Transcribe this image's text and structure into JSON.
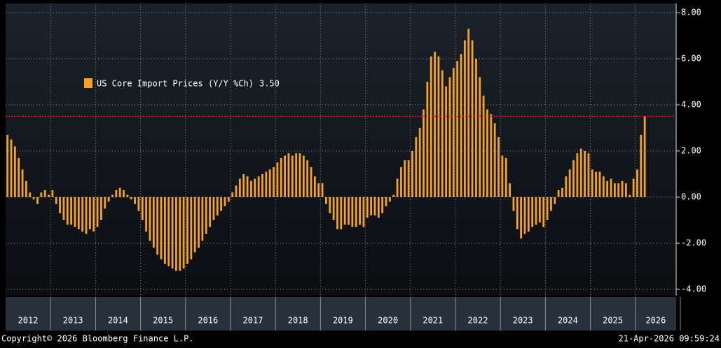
{
  "chart_data": {
    "type": "bar",
    "series": [
      {
        "name": "US Core Import Prices (Y/Y %Ch)",
        "color": "#f4a422",
        "values": [
          2.7,
          2.5,
          2.2,
          1.7,
          1.2,
          0.7,
          0.2,
          -0.1,
          -0.3,
          0.2,
          0.3,
          0.1,
          0.3,
          -0.3,
          -0.7,
          -1.0,
          -1.2,
          -1.2,
          -1.3,
          -1.4,
          -1.5,
          -1.6,
          -1.4,
          -1.5,
          -1.3,
          -1.0,
          -0.5,
          -0.2,
          0.1,
          0.3,
          0.4,
          0.3,
          0.1,
          -0.1,
          -0.3,
          -0.6,
          -1.0,
          -1.5,
          -1.9,
          -2.2,
          -2.5,
          -2.7,
          -2.9,
          -3.0,
          -3.1,
          -3.2,
          -3.2,
          -3.1,
          -2.9,
          -2.7,
          -2.4,
          -2.2,
          -1.9,
          -1.6,
          -1.3,
          -1.0,
          -0.8,
          -0.6,
          -0.4,
          -0.2,
          0.2,
          0.5,
          0.8,
          1.0,
          0.9,
          0.7,
          0.8,
          0.9,
          1.0,
          1.1,
          1.2,
          1.3,
          1.5,
          1.7,
          1.8,
          1.9,
          1.8,
          1.9,
          1.9,
          1.8,
          1.6,
          1.3,
          0.9,
          0.6,
          0.6,
          -0.3,
          -0.7,
          -1.0,
          -1.4,
          -1.4,
          -1.2,
          -1.2,
          -1.3,
          -1.3,
          -1.2,
          -1.3,
          -0.9,
          -0.8,
          -0.8,
          -0.9,
          -0.7,
          -0.4,
          -0.2,
          0.1,
          0.8,
          1.3,
          1.6,
          1.6,
          2.0,
          2.6,
          3.0,
          3.8,
          5.0,
          6.1,
          6.3,
          6.1,
          5.5,
          4.8,
          5.2,
          5.6,
          5.9,
          6.2,
          6.8,
          7.3,
          6.8,
          6.0,
          5.2,
          4.4,
          3.8,
          3.6,
          3.2,
          2.6,
          1.8,
          1.7,
          0.6,
          -0.6,
          -1.4,
          -1.8,
          -1.6,
          -1.5,
          -1.3,
          -1.2,
          -1.1,
          -1.3,
          -1.0,
          -0.6,
          -0.3,
          0.3,
          0.4,
          0.9,
          1.2,
          1.6,
          1.9,
          2.1,
          2.0,
          1.9,
          1.2,
          1.1,
          1.1,
          0.9,
          0.7,
          0.8,
          0.6,
          0.6,
          0.7,
          0.6,
          0.1,
          0.8,
          1.2,
          2.7,
          3.5
        ]
      }
    ],
    "legend_value": "3.50",
    "ref_line": 3.5,
    "ref_color": "#e02020",
    "categories": [
      "2012",
      null,
      null,
      null,
      null,
      null,
      null,
      null,
      null,
      null,
      null,
      null,
      "2013",
      null,
      null,
      null,
      null,
      null,
      null,
      null,
      null,
      null,
      null,
      null,
      "2014",
      null,
      null,
      null,
      null,
      null,
      null,
      null,
      null,
      null,
      null,
      null,
      "2015",
      null,
      null,
      null,
      null,
      null,
      null,
      null,
      null,
      null,
      null,
      null,
      "2016",
      null,
      null,
      null,
      null,
      null,
      null,
      null,
      null,
      null,
      null,
      null,
      "2017",
      null,
      null,
      null,
      null,
      null,
      null,
      null,
      null,
      null,
      null,
      null,
      "2018",
      null,
      null,
      null,
      null,
      null,
      null,
      null,
      null,
      null,
      null,
      null,
      "2019",
      null,
      null,
      null,
      null,
      null,
      null,
      null,
      null,
      null,
      null,
      null,
      "2020",
      null,
      null,
      null,
      null,
      null,
      null,
      null,
      null,
      null,
      null,
      null,
      "2021",
      null,
      null,
      null,
      null,
      null,
      null,
      null,
      null,
      null,
      null,
      null,
      "2022",
      null,
      null,
      null,
      null,
      null,
      null,
      null,
      null,
      null,
      null,
      null,
      "2023",
      null,
      null,
      null,
      null,
      null,
      null,
      null,
      null,
      null,
      null,
      null,
      "2024",
      null,
      null,
      null,
      null,
      null,
      null,
      null,
      null,
      null,
      null,
      null,
      "2025",
      null,
      null,
      null,
      null,
      null,
      null,
      null,
      null,
      null,
      null,
      null,
      "2026",
      null,
      null
    ],
    "ylim": [
      -4,
      8
    ],
    "yticks": [
      {
        "value": -4,
        "label": "-4.00"
      },
      {
        "value": -2,
        "label": "-2.00"
      },
      {
        "value": 0,
        "label": "0.00"
      },
      {
        "value": 2,
        "label": "2.00"
      },
      {
        "value": 4,
        "label": "4.00"
      },
      {
        "value": 6,
        "label": "6.00"
      },
      {
        "value": 8,
        "label": "8.00"
      }
    ],
    "grid": true,
    "copyright": "Copyright© 2026 Bloomberg Finance L.P.",
    "timestamp": "21-Apr-2026 09:59:24"
  }
}
